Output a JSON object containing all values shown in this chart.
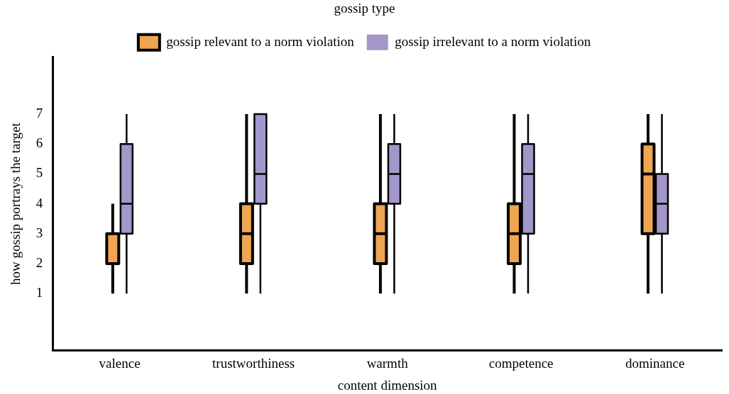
{
  "chart_data": {
    "type": "box",
    "categories": [
      "valence",
      "trustworthiness",
      "warmth",
      "competence",
      "dominance"
    ],
    "xlabel": "content dimension",
    "ylabel": "how gossip portrays the target",
    "legend_title": "gossip type",
    "ylim": [
      -0.9,
      8.9
    ],
    "yticks": [
      1,
      2,
      3,
      4,
      5,
      6,
      7
    ],
    "grid": false,
    "legend": "top",
    "series": [
      {
        "name": "gossip relevant to a norm violation",
        "color": "#f0a550",
        "boxes": [
          {
            "low": 1,
            "q1": 2,
            "median": 2,
            "q3": 3,
            "high": 4
          },
          {
            "low": 1,
            "q1": 2,
            "median": 3,
            "q3": 4,
            "high": 7
          },
          {
            "low": 1,
            "q1": 2,
            "median": 3,
            "q3": 4,
            "high": 7
          },
          {
            "low": 1,
            "q1": 2,
            "median": 3,
            "q3": 4,
            "high": 7
          },
          {
            "low": 1,
            "q1": 3,
            "median": 5,
            "q3": 6,
            "high": 7
          }
        ]
      },
      {
        "name": "gossip irrelevant to a norm violation",
        "color": "#a396cb",
        "boxes": [
          {
            "low": 1,
            "q1": 3,
            "median": 4,
            "q3": 6,
            "high": 7
          },
          {
            "low": 1,
            "q1": 4,
            "median": 5,
            "q3": 7,
            "high": 7
          },
          {
            "low": 1,
            "q1": 4,
            "median": 5,
            "q3": 6,
            "high": 7
          },
          {
            "low": 1,
            "q1": 3,
            "median": 5,
            "q3": 6,
            "high": 7
          },
          {
            "low": 1,
            "q1": 3,
            "median": 4,
            "q3": 5,
            "high": 7
          }
        ]
      }
    ]
  }
}
